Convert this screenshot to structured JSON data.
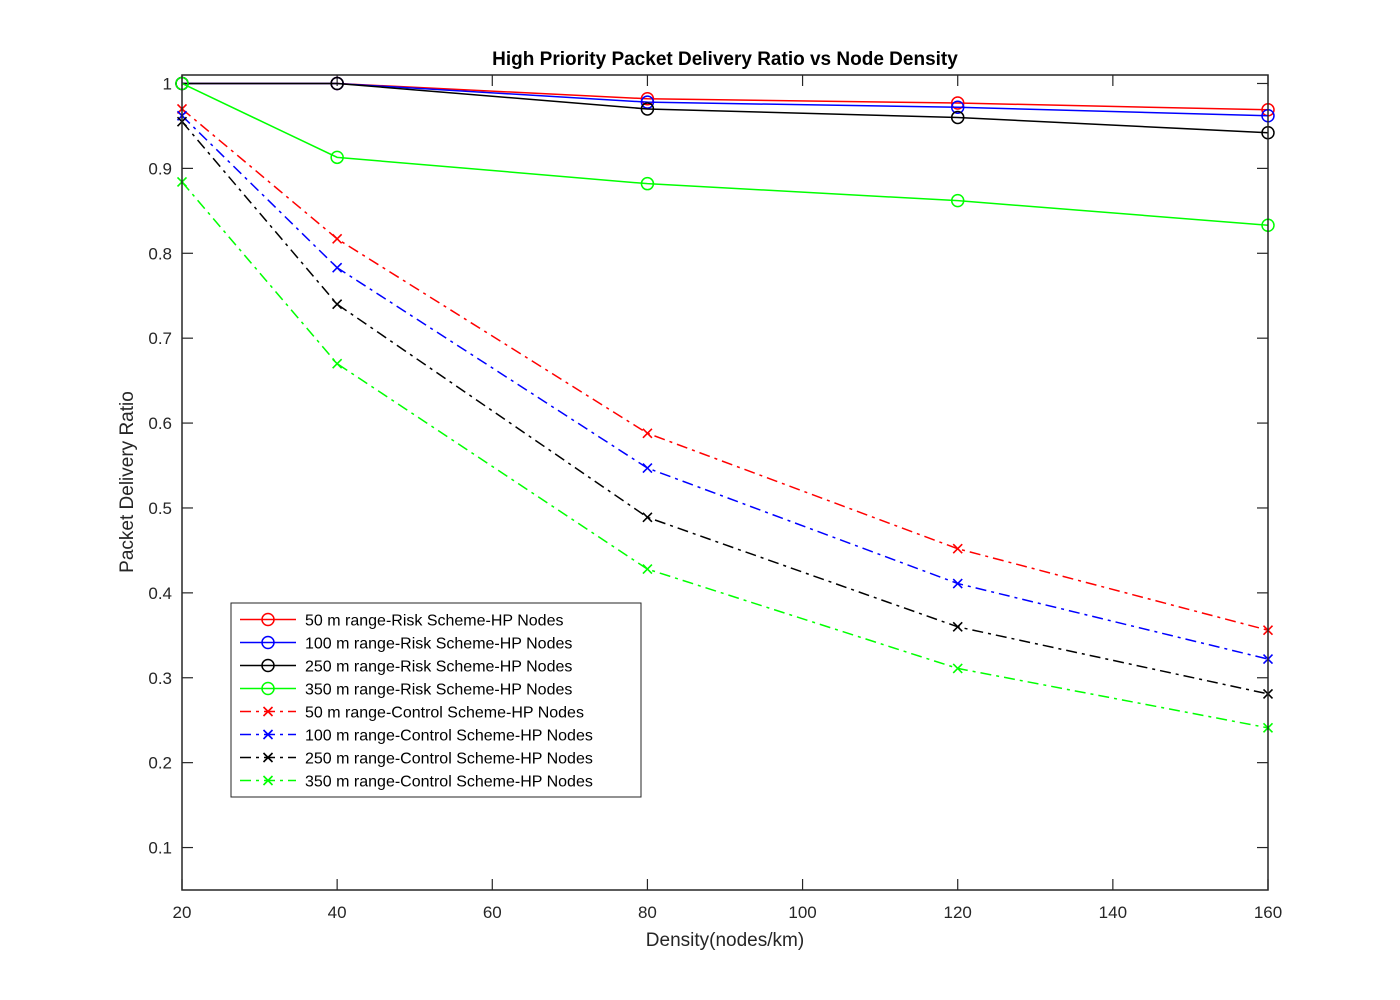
{
  "chart_data": {
    "type": "line",
    "title": "High Priority Packet Delivery Ratio vs Node Density",
    "xlabel": "Density(nodes/km)",
    "ylabel": "Packet Delivery Ratio",
    "xlim": [
      20,
      160
    ],
    "ylim": [
      0.05,
      1.01
    ],
    "xticks": [
      20,
      40,
      60,
      80,
      100,
      120,
      140,
      160
    ],
    "yticks": [
      0.1,
      0.2,
      0.3,
      0.4,
      0.5,
      0.6,
      0.7,
      0.8,
      0.9,
      1
    ],
    "xtick_labels": [
      "20",
      "40",
      "60",
      "80",
      "100",
      "120",
      "140",
      "160"
    ],
    "ytick_labels": [
      "0.1",
      "0.2",
      "0.3",
      "0.4",
      "0.5",
      "0.6",
      "0.7",
      "0.8",
      "0.9",
      "1"
    ],
    "grid": false,
    "legend_position": "lower-left",
    "x": [
      20,
      40,
      80,
      120,
      160
    ],
    "series": [
      {
        "name": "50 m range-Risk Scheme-HP Nodes",
        "color": "#ff0000",
        "line_style": "solid",
        "marker": "circle",
        "values": [
          1.0,
          1.0,
          0.982,
          0.977,
          0.969
        ]
      },
      {
        "name": "100 m range-Risk Scheme-HP Nodes",
        "color": "#0000ff",
        "line_style": "solid",
        "marker": "circle",
        "values": [
          1.0,
          1.0,
          0.978,
          0.972,
          0.962
        ]
      },
      {
        "name": "250 m range-Risk Scheme-HP Nodes",
        "color": "#000000",
        "line_style": "solid",
        "marker": "circle",
        "values": [
          1.0,
          1.0,
          0.97,
          0.96,
          0.942
        ]
      },
      {
        "name": "350 m range-Risk Scheme-HP Nodes",
        "color": "#00ff00",
        "line_style": "solid",
        "marker": "circle",
        "values": [
          1.0,
          0.913,
          0.882,
          0.862,
          0.833
        ]
      },
      {
        "name": "50 m range-Control Scheme-HP Nodes",
        "color": "#ff0000",
        "line_style": "dashdot",
        "marker": "x",
        "values": [
          0.97,
          0.817,
          0.588,
          0.452,
          0.356
        ]
      },
      {
        "name": "100 m range-Control Scheme-HP Nodes",
        "color": "#0000ff",
        "line_style": "dashdot",
        "marker": "x",
        "values": [
          0.962,
          0.783,
          0.547,
          0.411,
          0.322
        ]
      },
      {
        "name": "250 m range-Control Scheme-HP Nodes",
        "color": "#000000",
        "line_style": "dashdot",
        "marker": "x",
        "values": [
          0.955,
          0.74,
          0.489,
          0.36,
          0.281
        ]
      },
      {
        "name": "350 m range-Control Scheme-HP Nodes",
        "color": "#00ff00",
        "line_style": "dashdot",
        "marker": "x",
        "values": [
          0.884,
          0.67,
          0.428,
          0.311,
          0.241
        ]
      }
    ]
  }
}
